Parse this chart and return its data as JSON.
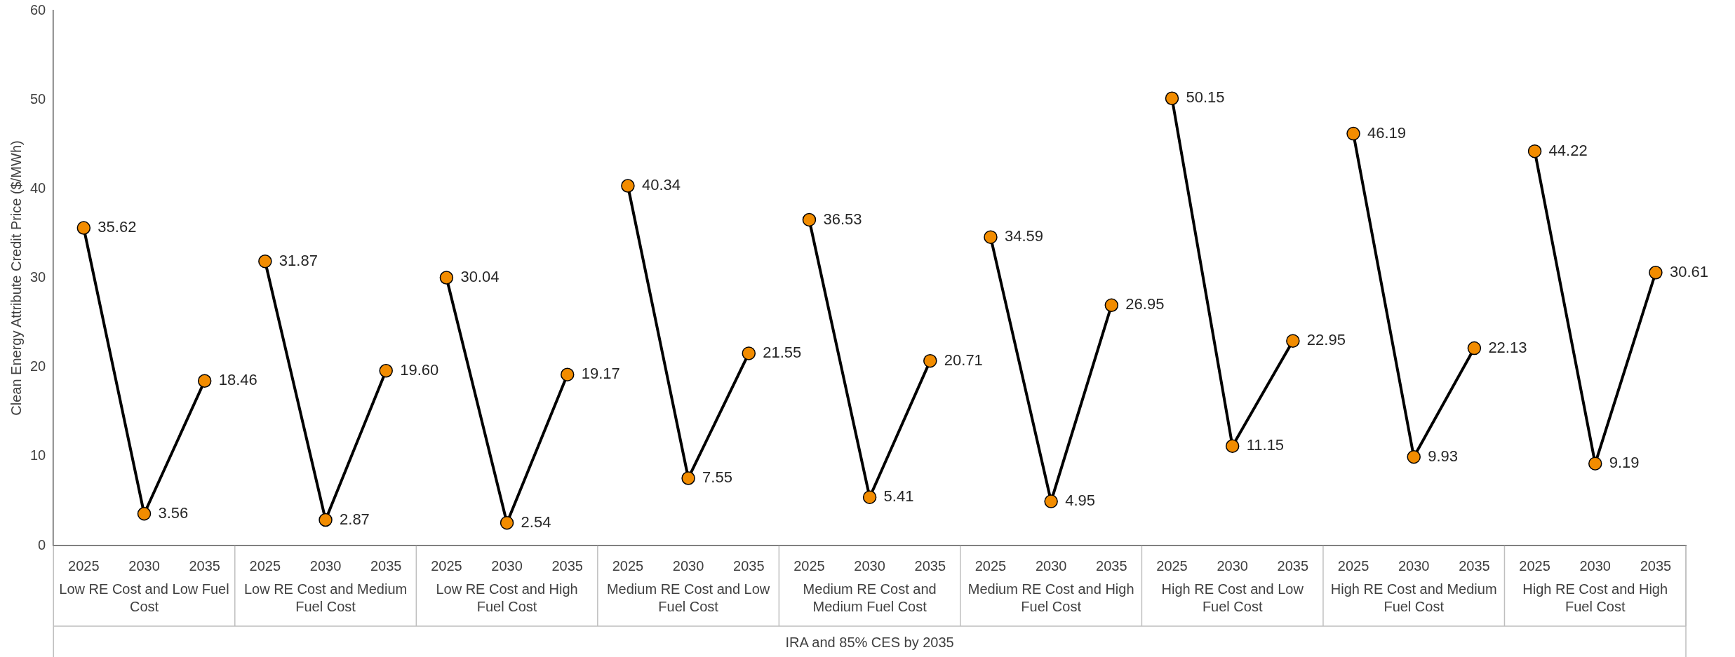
{
  "chart_data": {
    "type": "line",
    "ylabel": "Clean Energy Attribute Credit Price ($/MWh)",
    "xlabel": "IRA and 85% CES by 2035",
    "categories": [
      "2025",
      "2030",
      "2035",
      "2025",
      "2030",
      "2035",
      "2025",
      "2030",
      "2035",
      "2025",
      "2030",
      "2035",
      "2025",
      "2030",
      "2035",
      "2025",
      "2030",
      "2035",
      "2025",
      "2030",
      "2035",
      "2025",
      "2030",
      "2035",
      "2025",
      "2030",
      "2035"
    ],
    "ylim": [
      0,
      60
    ],
    "yticks": [
      0,
      10,
      20,
      30,
      40,
      50,
      60
    ],
    "annotations": [
      "Low RE Cost and Low Fuel Cost",
      "Low RE Cost and Medium Fuel Cost",
      "Low RE Cost and High Fuel Cost",
      "Medium RE Cost and Low Fuel Cost",
      "Medium RE Cost and Medium Fuel Cost",
      "Medium RE Cost and High Fuel Cost",
      "High RE Cost and Low Fuel Cost",
      "High RE Cost and Medium Fuel Cost",
      "High RE Cost and High Fuel Cost"
    ],
    "grid": false,
    "legend": false,
    "marker": "circle",
    "line_style": "solid",
    "series": [
      {
        "color": "#f28c00",
        "values": [
          35.62,
          3.56,
          18.46,
          null,
          null,
          null,
          null,
          null,
          null,
          null,
          null,
          null,
          null,
          null,
          null,
          null,
          null,
          null,
          null,
          null,
          null,
          null,
          null,
          null,
          null,
          null,
          null
        ],
        "value_labels": [
          "35.62",
          "3.56",
          "18.46",
          null,
          null,
          null,
          null,
          null,
          null,
          null,
          null,
          null,
          null,
          null,
          null,
          null,
          null,
          null,
          null,
          null,
          null,
          null,
          null,
          null,
          null,
          null,
          null
        ]
      },
      {
        "color": "#f28c00",
        "values": [
          null,
          null,
          null,
          31.87,
          2.87,
          19.6,
          null,
          null,
          null,
          null,
          null,
          null,
          null,
          null,
          null,
          null,
          null,
          null,
          null,
          null,
          null,
          null,
          null,
          null,
          null,
          null,
          null
        ],
        "value_labels": [
          null,
          null,
          null,
          "31.87",
          "2.87",
          "19.60",
          null,
          null,
          null,
          null,
          null,
          null,
          null,
          null,
          null,
          null,
          null,
          null,
          null,
          null,
          null,
          null,
          null,
          null,
          null,
          null,
          null
        ]
      },
      {
        "color": "#f28c00",
        "values": [
          null,
          null,
          null,
          null,
          null,
          null,
          30.04,
          2.54,
          19.17,
          null,
          null,
          null,
          null,
          null,
          null,
          null,
          null,
          null,
          null,
          null,
          null,
          null,
          null,
          null,
          null,
          null,
          null
        ],
        "value_labels": [
          null,
          null,
          null,
          null,
          null,
          null,
          "30.04",
          "2.54",
          "19.17",
          null,
          null,
          null,
          null,
          null,
          null,
          null,
          null,
          null,
          null,
          null,
          null,
          null,
          null,
          null,
          null,
          null,
          null
        ]
      },
      {
        "color": "#f28c00",
        "values": [
          null,
          null,
          null,
          null,
          null,
          null,
          null,
          null,
          null,
          40.34,
          7.55,
          21.55,
          null,
          null,
          null,
          null,
          null,
          null,
          null,
          null,
          null,
          null,
          null,
          null,
          null,
          null,
          null
        ],
        "value_labels": [
          null,
          null,
          null,
          null,
          null,
          null,
          null,
          null,
          null,
          "40.34",
          "7.55",
          "21.55",
          null,
          null,
          null,
          null,
          null,
          null,
          null,
          null,
          null,
          null,
          null,
          null,
          null,
          null,
          null
        ]
      },
      {
        "color": "#f28c00",
        "values": [
          null,
          null,
          null,
          null,
          null,
          null,
          null,
          null,
          null,
          null,
          null,
          null,
          36.53,
          5.41,
          20.71,
          null,
          null,
          null,
          null,
          null,
          null,
          null,
          null,
          null,
          null,
          null,
          null
        ],
        "value_labels": [
          null,
          null,
          null,
          null,
          null,
          null,
          null,
          null,
          null,
          null,
          null,
          null,
          "36.53",
          "5.41",
          "20.71",
          null,
          null,
          null,
          null,
          null,
          null,
          null,
          null,
          null,
          null,
          null,
          null
        ]
      },
      {
        "color": "#f28c00",
        "values": [
          null,
          null,
          null,
          null,
          null,
          null,
          null,
          null,
          null,
          null,
          null,
          null,
          null,
          null,
          null,
          34.59,
          4.95,
          26.95,
          null,
          null,
          null,
          null,
          null,
          null,
          null,
          null,
          null
        ],
        "value_labels": [
          null,
          null,
          null,
          null,
          null,
          null,
          null,
          null,
          null,
          null,
          null,
          null,
          null,
          null,
          null,
          "34.59",
          "4.95",
          "26.95",
          null,
          null,
          null,
          null,
          null,
          null,
          null,
          null,
          null
        ]
      },
      {
        "color": "#f28c00",
        "values": [
          null,
          null,
          null,
          null,
          null,
          null,
          null,
          null,
          null,
          null,
          null,
          null,
          null,
          null,
          null,
          null,
          null,
          null,
          50.15,
          11.15,
          22.95,
          null,
          null,
          null,
          null,
          null,
          null
        ],
        "value_labels": [
          null,
          null,
          null,
          null,
          null,
          null,
          null,
          null,
          null,
          null,
          null,
          null,
          null,
          null,
          null,
          null,
          null,
          null,
          "50.15",
          "11.15",
          "22.95",
          null,
          null,
          null,
          null,
          null,
          null
        ]
      },
      {
        "color": "#f28c00",
        "values": [
          null,
          null,
          null,
          null,
          null,
          null,
          null,
          null,
          null,
          null,
          null,
          null,
          null,
          null,
          null,
          null,
          null,
          null,
          null,
          null,
          null,
          46.19,
          9.93,
          22.13,
          null,
          null,
          null
        ],
        "value_labels": [
          null,
          null,
          null,
          null,
          null,
          null,
          null,
          null,
          null,
          null,
          null,
          null,
          null,
          null,
          null,
          null,
          null,
          null,
          null,
          null,
          null,
          "46.19",
          "9.93",
          "22.13",
          null,
          null,
          null
        ]
      },
      {
        "color": "#f28c00",
        "values": [
          null,
          null,
          null,
          null,
          null,
          null,
          null,
          null,
          null,
          null,
          null,
          null,
          null,
          null,
          null,
          null,
          null,
          null,
          null,
          null,
          null,
          null,
          null,
          null,
          44.22,
          9.19,
          30.61
        ],
        "value_labels": [
          null,
          null,
          null,
          null,
          null,
          null,
          null,
          null,
          null,
          null,
          null,
          null,
          null,
          null,
          null,
          null,
          null,
          null,
          null,
          null,
          null,
          null,
          null,
          null,
          "44.22",
          "9.19",
          "30.61"
        ]
      }
    ]
  }
}
